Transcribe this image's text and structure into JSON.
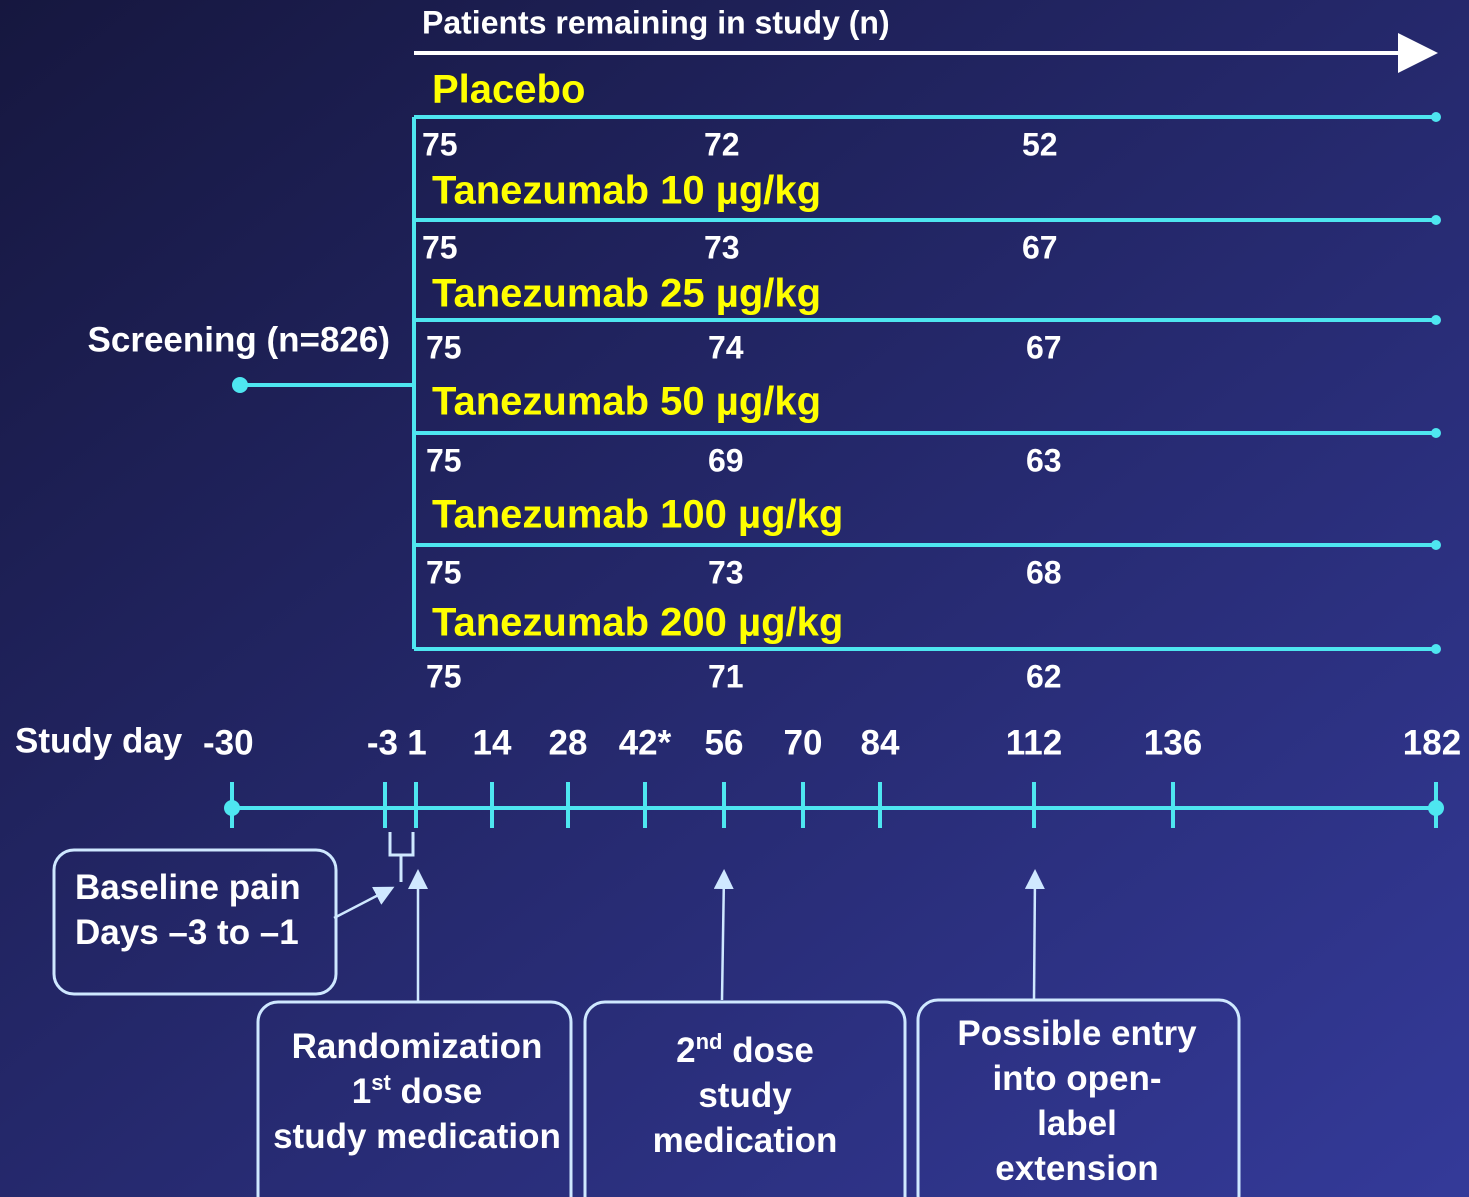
{
  "header": {
    "title": "Patients remaining in study (n)"
  },
  "screening": "Screening (n=826)",
  "arms": [
    {
      "name": "Placebo",
      "counts": [
        "75",
        "72",
        "52"
      ]
    },
    {
      "name": "Tanezumab 10 µg/kg",
      "counts": [
        "75",
        "73",
        "67"
      ]
    },
    {
      "name": "Tanezumab 25 µg/kg",
      "counts": [
        "75",
        "74",
        "67"
      ]
    },
    {
      "name": "Tanezumab 50 µg/kg",
      "counts": [
        "75",
        "69",
        "63"
      ]
    },
    {
      "name": "Tanezumab 100 µg/kg",
      "counts": [
        "75",
        "73",
        "68"
      ]
    },
    {
      "name": "Tanezumab 200 µg/kg",
      "counts": [
        "75",
        "71",
        "62"
      ]
    }
  ],
  "timeline": {
    "label": "Study day",
    "days": [
      "-30",
      "-3",
      "1",
      "14",
      "28",
      "42*",
      "56",
      "70",
      "84",
      "112",
      "136",
      "182"
    ]
  },
  "boxes": [
    {
      "lines": [
        [
          "Baseline pain"
        ],
        [
          "Days –3 to –1"
        ]
      ]
    },
    {
      "lines": [
        [
          "Randomization"
        ],
        [
          "1",
          "st",
          " dose"
        ],
        [
          "study medication"
        ]
      ]
    },
    {
      "lines": [
        [
          "2",
          "nd",
          " dose"
        ],
        [
          "study"
        ],
        [
          "medication"
        ]
      ]
    },
    {
      "lines": [
        [
          "Possible entry"
        ],
        [
          "into open-"
        ],
        [
          "label"
        ],
        [
          "extension"
        ]
      ]
    }
  ]
}
